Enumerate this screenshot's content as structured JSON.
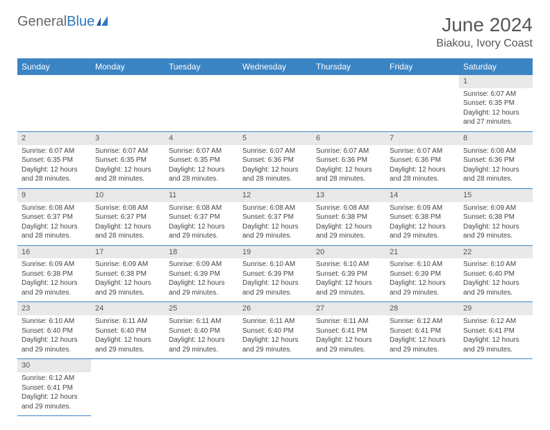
{
  "logo": {
    "text1": "General",
    "text2": "Blue",
    "flag_color": "#2b78c2"
  },
  "title": "June 2024",
  "location": "Biakou, Ivory Coast",
  "colors": {
    "header_bg": "#3b84c4",
    "header_fg": "#ffffff",
    "daynum_bg": "#e9e9e9",
    "rule": "#3b84c4"
  },
  "day_header_fontsize": 12,
  "cell_fontsize": 10,
  "weekdays": [
    "Sunday",
    "Monday",
    "Tuesday",
    "Wednesday",
    "Thursday",
    "Friday",
    "Saturday"
  ],
  "weeks": [
    [
      null,
      null,
      null,
      null,
      null,
      null,
      {
        "n": "1",
        "sr": "Sunrise: 6:07 AM",
        "ss": "Sunset: 6:35 PM",
        "dl": "Daylight: 12 hours and 27 minutes."
      }
    ],
    [
      {
        "n": "2",
        "sr": "Sunrise: 6:07 AM",
        "ss": "Sunset: 6:35 PM",
        "dl": "Daylight: 12 hours and 28 minutes."
      },
      {
        "n": "3",
        "sr": "Sunrise: 6:07 AM",
        "ss": "Sunset: 6:35 PM",
        "dl": "Daylight: 12 hours and 28 minutes."
      },
      {
        "n": "4",
        "sr": "Sunrise: 6:07 AM",
        "ss": "Sunset: 6:35 PM",
        "dl": "Daylight: 12 hours and 28 minutes."
      },
      {
        "n": "5",
        "sr": "Sunrise: 6:07 AM",
        "ss": "Sunset: 6:36 PM",
        "dl": "Daylight: 12 hours and 28 minutes."
      },
      {
        "n": "6",
        "sr": "Sunrise: 6:07 AM",
        "ss": "Sunset: 6:36 PM",
        "dl": "Daylight: 12 hours and 28 minutes."
      },
      {
        "n": "7",
        "sr": "Sunrise: 6:07 AM",
        "ss": "Sunset: 6:36 PM",
        "dl": "Daylight: 12 hours and 28 minutes."
      },
      {
        "n": "8",
        "sr": "Sunrise: 6:08 AM",
        "ss": "Sunset: 6:36 PM",
        "dl": "Daylight: 12 hours and 28 minutes."
      }
    ],
    [
      {
        "n": "9",
        "sr": "Sunrise: 6:08 AM",
        "ss": "Sunset: 6:37 PM",
        "dl": "Daylight: 12 hours and 28 minutes."
      },
      {
        "n": "10",
        "sr": "Sunrise: 6:08 AM",
        "ss": "Sunset: 6:37 PM",
        "dl": "Daylight: 12 hours and 28 minutes."
      },
      {
        "n": "11",
        "sr": "Sunrise: 6:08 AM",
        "ss": "Sunset: 6:37 PM",
        "dl": "Daylight: 12 hours and 29 minutes."
      },
      {
        "n": "12",
        "sr": "Sunrise: 6:08 AM",
        "ss": "Sunset: 6:37 PM",
        "dl": "Daylight: 12 hours and 29 minutes."
      },
      {
        "n": "13",
        "sr": "Sunrise: 6:08 AM",
        "ss": "Sunset: 6:38 PM",
        "dl": "Daylight: 12 hours and 29 minutes."
      },
      {
        "n": "14",
        "sr": "Sunrise: 6:09 AM",
        "ss": "Sunset: 6:38 PM",
        "dl": "Daylight: 12 hours and 29 minutes."
      },
      {
        "n": "15",
        "sr": "Sunrise: 6:09 AM",
        "ss": "Sunset: 6:38 PM",
        "dl": "Daylight: 12 hours and 29 minutes."
      }
    ],
    [
      {
        "n": "16",
        "sr": "Sunrise: 6:09 AM",
        "ss": "Sunset: 6:38 PM",
        "dl": "Daylight: 12 hours and 29 minutes."
      },
      {
        "n": "17",
        "sr": "Sunrise: 6:09 AM",
        "ss": "Sunset: 6:38 PM",
        "dl": "Daylight: 12 hours and 29 minutes."
      },
      {
        "n": "18",
        "sr": "Sunrise: 6:09 AM",
        "ss": "Sunset: 6:39 PM",
        "dl": "Daylight: 12 hours and 29 minutes."
      },
      {
        "n": "19",
        "sr": "Sunrise: 6:10 AM",
        "ss": "Sunset: 6:39 PM",
        "dl": "Daylight: 12 hours and 29 minutes."
      },
      {
        "n": "20",
        "sr": "Sunrise: 6:10 AM",
        "ss": "Sunset: 6:39 PM",
        "dl": "Daylight: 12 hours and 29 minutes."
      },
      {
        "n": "21",
        "sr": "Sunrise: 6:10 AM",
        "ss": "Sunset: 6:39 PM",
        "dl": "Daylight: 12 hours and 29 minutes."
      },
      {
        "n": "22",
        "sr": "Sunrise: 6:10 AM",
        "ss": "Sunset: 6:40 PM",
        "dl": "Daylight: 12 hours and 29 minutes."
      }
    ],
    [
      {
        "n": "23",
        "sr": "Sunrise: 6:10 AM",
        "ss": "Sunset: 6:40 PM",
        "dl": "Daylight: 12 hours and 29 minutes."
      },
      {
        "n": "24",
        "sr": "Sunrise: 6:11 AM",
        "ss": "Sunset: 6:40 PM",
        "dl": "Daylight: 12 hours and 29 minutes."
      },
      {
        "n": "25",
        "sr": "Sunrise: 6:11 AM",
        "ss": "Sunset: 6:40 PM",
        "dl": "Daylight: 12 hours and 29 minutes."
      },
      {
        "n": "26",
        "sr": "Sunrise: 6:11 AM",
        "ss": "Sunset: 6:40 PM",
        "dl": "Daylight: 12 hours and 29 minutes."
      },
      {
        "n": "27",
        "sr": "Sunrise: 6:11 AM",
        "ss": "Sunset: 6:41 PM",
        "dl": "Daylight: 12 hours and 29 minutes."
      },
      {
        "n": "28",
        "sr": "Sunrise: 6:12 AM",
        "ss": "Sunset: 6:41 PM",
        "dl": "Daylight: 12 hours and 29 minutes."
      },
      {
        "n": "29",
        "sr": "Sunrise: 6:12 AM",
        "ss": "Sunset: 6:41 PM",
        "dl": "Daylight: 12 hours and 29 minutes."
      }
    ],
    [
      {
        "n": "30",
        "sr": "Sunrise: 6:12 AM",
        "ss": "Sunset: 6:41 PM",
        "dl": "Daylight: 12 hours and 29 minutes."
      },
      null,
      null,
      null,
      null,
      null,
      null
    ]
  ]
}
